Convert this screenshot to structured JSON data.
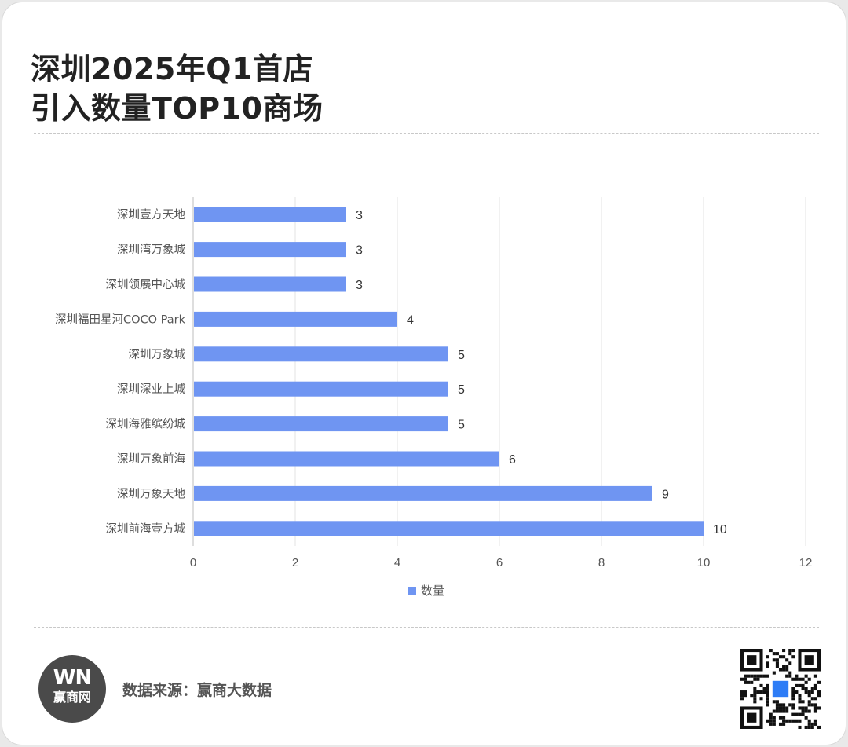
{
  "header": {
    "title_line1": "深圳2025年Q1首店",
    "title_line2": "引入数量TOP10商场"
  },
  "chart_data": {
    "type": "bar",
    "orientation": "horizontal",
    "categories": [
      "深圳壹方天地",
      "深圳湾万象城",
      "深圳领展中心城",
      "深圳福田星河COCO Park",
      "深圳万象城",
      "深圳深业上城",
      "深圳海雅缤纷城",
      "深圳万象前海",
      "深圳万象天地",
      "深圳前海壹方城"
    ],
    "series": [
      {
        "name": "数量",
        "values": [
          3,
          3,
          3,
          4,
          5,
          5,
          5,
          6,
          9,
          10
        ],
        "color": "#6f95f2"
      }
    ],
    "xlim": [
      0,
      12
    ],
    "xticks": [
      "0",
      "2",
      "4",
      "6",
      "8",
      "10",
      "12"
    ],
    "grid": true,
    "legend_position": "bottom",
    "data_labels": true
  },
  "footer": {
    "logo_mark": "WN",
    "logo_name": "赢商网",
    "source": "数据来源：赢商大数据"
  },
  "colors": {
    "bar": "#6f95f2",
    "grid": "#e3e3e3",
    "axis_text": "#555555",
    "title": "#222222"
  }
}
